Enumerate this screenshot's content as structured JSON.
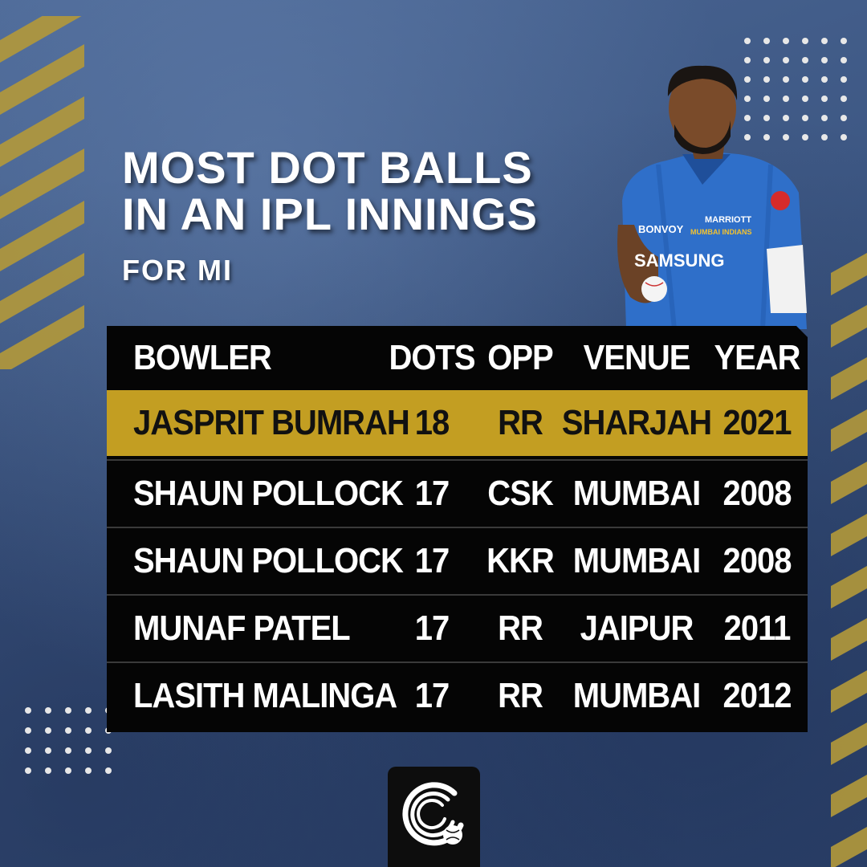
{
  "title": {
    "line1": "MOST DOT BALLS",
    "line2": "IN AN IPL INNINGS",
    "subtitle": "FOR MI"
  },
  "table": {
    "headers": {
      "bowler": "BOWLER",
      "dots": "DOTS",
      "opp": "OPP",
      "venue": "VENUE",
      "year": "YEAR"
    },
    "rows": [
      {
        "bowler": "JASPRIT BUMRAH",
        "dots": "18",
        "opp": "RR",
        "venue": "SHARJAH",
        "year": "2021",
        "highlight": true
      },
      {
        "bowler": "SHAUN POLLOCK",
        "dots": "17",
        "opp": "CSK",
        "venue": "MUMBAI",
        "year": "2008",
        "highlight": false
      },
      {
        "bowler": "SHAUN POLLOCK",
        "dots": "17",
        "opp": "KKR",
        "venue": "MUMBAI",
        "year": "2008",
        "highlight": false
      },
      {
        "bowler": "MUNAF PATEL",
        "dots": "17",
        "opp": "RR",
        "venue": "JAIPUR",
        "year": "2011",
        "highlight": false
      },
      {
        "bowler": "LASITH MALINGA",
        "dots": "17",
        "opp": "RR",
        "venue": "MUMBAI",
        "year": "2012",
        "highlight": false
      }
    ]
  },
  "player_jersey": {
    "sponsor": "SAMSUNG",
    "brand": "BONVOY",
    "team_badge": "MUMBAI INDIANS"
  },
  "icons": {
    "logo": "cricket-ball-swirl-icon"
  },
  "colors": {
    "background": "#3f5a86",
    "highlight": "#c39e22",
    "table": "#050505",
    "stripe": "#b3993a",
    "jersey": "#2f6fc9"
  }
}
